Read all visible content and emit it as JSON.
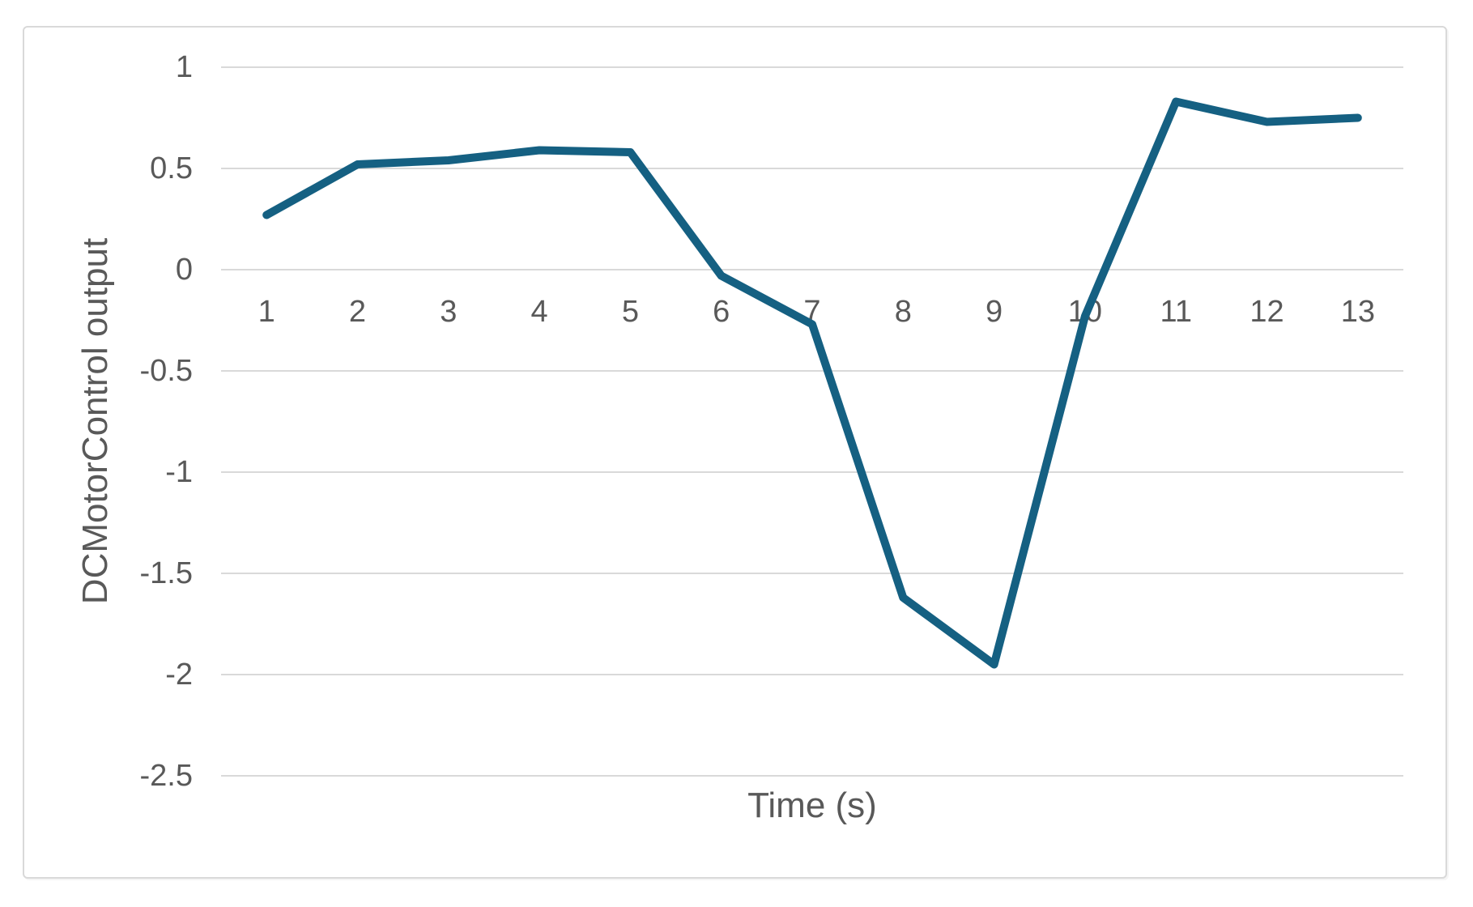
{
  "chart_data": {
    "type": "line",
    "title": "",
    "xlabel": "Time (s)",
    "ylabel": "DCMotorControl output",
    "x": [
      1,
      2,
      3,
      4,
      5,
      6,
      7,
      8,
      9,
      10,
      11,
      12,
      13
    ],
    "series": [
      {
        "name": "DCMotorControl output",
        "values": [
          0.27,
          0.52,
          0.54,
          0.59,
          0.58,
          -0.03,
          -0.27,
          -1.62,
          -1.95,
          -0.23,
          0.83,
          0.73,
          0.75
        ]
      }
    ],
    "yticks": [
      1,
      0.5,
      0,
      -0.5,
      -1,
      -1.5,
      -2,
      -2.5
    ],
    "ylim": [
      -2.5,
      1
    ],
    "grid": "horizontal",
    "legend": "none",
    "colors": {
      "line": "#156082",
      "grid": "#d9d9d9",
      "tick_text": "#595959",
      "axis_title_text": "#595959",
      "frame_border": "#d9d9d9",
      "background": "#ffffff"
    }
  }
}
